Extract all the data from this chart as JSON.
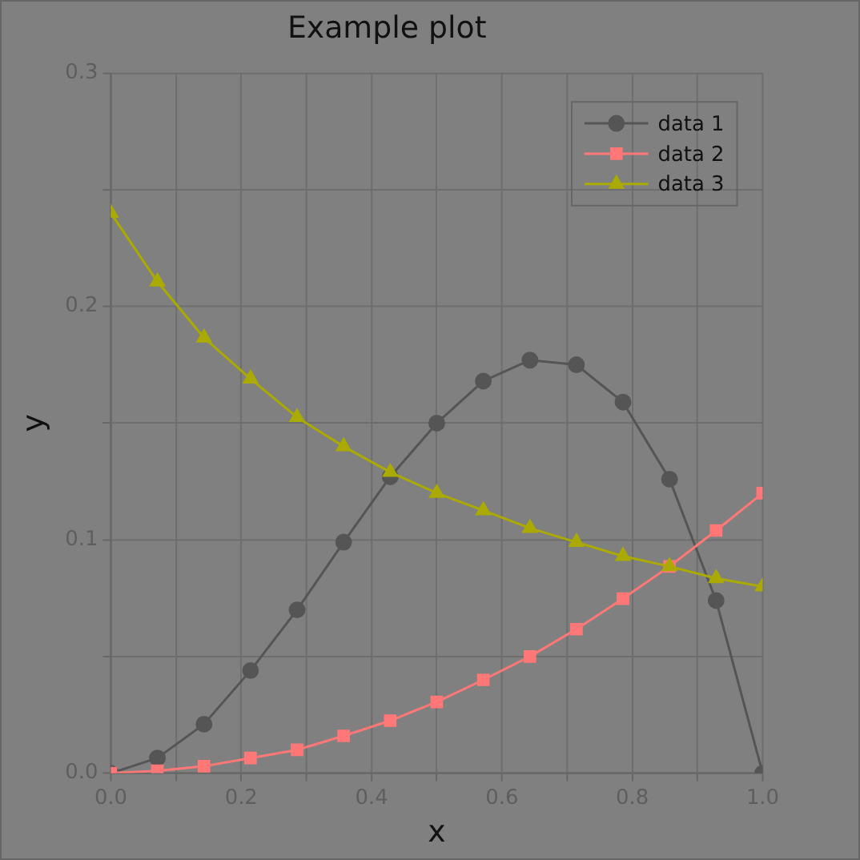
{
  "chart_data": {
    "type": "line",
    "title": "Example plot",
    "xlabel": "x",
    "ylabel": "y",
    "x": [
      0,
      0.0714,
      0.1429,
      0.2143,
      0.2857,
      0.3571,
      0.4286,
      0.5,
      0.5714,
      0.6429,
      0.7143,
      0.7857,
      0.8571,
      0.9286,
      1.0
    ],
    "series": [
      {
        "name": "data 1",
        "color": "#555555",
        "marker": "circle",
        "values": [
          0,
          0.0065,
          0.021,
          0.044,
          0.07,
          0.099,
          0.127,
          0.15,
          0.168,
          0.177,
          0.175,
          0.159,
          0.126,
          0.074,
          0
        ]
      },
      {
        "name": "data 2",
        "color": "#ff7777",
        "marker": "square",
        "values": [
          0,
          0.001,
          0.003,
          0.0065,
          0.01,
          0.016,
          0.0225,
          0.0305,
          0.04,
          0.05,
          0.0617,
          0.0748,
          0.0886,
          0.104,
          0.12
        ]
      },
      {
        "name": "data 3",
        "color": "#aaaa00",
        "marker": "triangle",
        "values": [
          0.24,
          0.2106,
          0.1866,
          0.169,
          0.1525,
          0.14,
          0.129,
          0.12,
          0.1126,
          0.105,
          0.099,
          0.093,
          0.0886,
          0.0835,
          0.08
        ]
      }
    ],
    "xlim": [
      0,
      1
    ],
    "ylim": [
      0,
      0.3
    ],
    "xticks": [
      {
        "value": 0,
        "label": "0.0"
      },
      {
        "value": 0.1,
        "label": null
      },
      0.2,
      {
        "value": 0.3,
        "label": null
      },
      0.4,
      {
        "value": 0.5,
        "label": null
      },
      0.6,
      {
        "value": 0.7,
        "label": null
      },
      0.8,
      {
        "value": 0.9,
        "label": null
      },
      {
        "value": 1,
        "label": "1.0"
      }
    ],
    "yticks": [
      {
        "value": 0,
        "label": "0.0"
      },
      {
        "value": 0.05,
        "label": null
      },
      0.1,
      {
        "value": 0.15,
        "label": null
      },
      0.2,
      {
        "value": 0.25,
        "label": null
      },
      0.3
    ],
    "grid": true,
    "legend": "top right",
    "line_style": "solid"
  }
}
